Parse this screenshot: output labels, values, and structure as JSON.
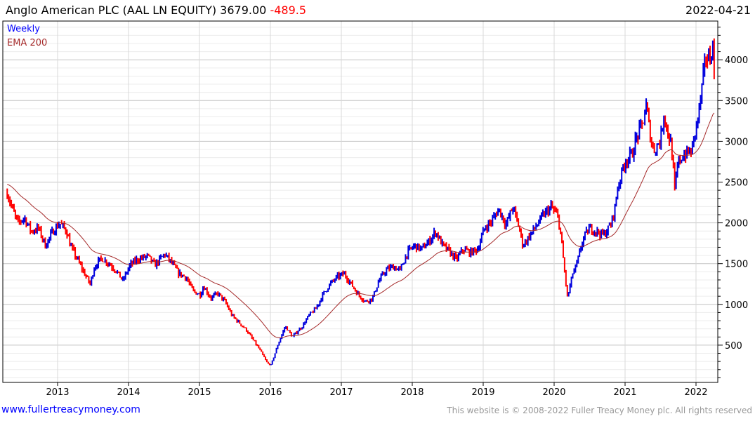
{
  "header": {
    "name": "Anglo American PLC (AAL LN EQUITY)",
    "last": "3679.00",
    "change": "-489.5",
    "date": "2022-04-21"
  },
  "footer": {
    "site": "www.fullertreacymoney.com",
    "copyright": "This website is © 2008-2022 Fuller Treacy Money plc. All rights reserved"
  },
  "colors": {
    "up": "#0000dd",
    "down": "#ff0000",
    "ema": "#a52a2a"
  },
  "chart_data": {
    "type": "line",
    "title": "Anglo American PLC (AAL LN EQUITY)",
    "legend": [
      {
        "label": "Weekly",
        "color": "#0000ff"
      },
      {
        "label": "EMA 200",
        "color": "#a52a2a"
      }
    ],
    "legend_position": "top-left",
    "xlim": [
      2012.25,
      2022.35
    ],
    "ylim": [
      0,
      4400
    ],
    "y_ticks": [
      500,
      1000,
      1500,
      2000,
      2500,
      3000,
      3500,
      4000
    ],
    "x_ticks": [
      2013,
      2014,
      2015,
      2016,
      2017,
      2018,
      2019,
      2020,
      2021,
      2022
    ],
    "x_tick_labels": [
      "2013",
      "2014",
      "2015",
      "2016",
      "2017",
      "2018",
      "2019",
      "2020",
      "2021",
      "2022"
    ],
    "y_tick_labels": [
      "500",
      "1000",
      "1500",
      "2000",
      "2500",
      "3000",
      "3500",
      "4000"
    ],
    "grid": true,
    "ema_start": 2480,
    "price_path": [
      [
        2012.29,
        2367
      ],
      [
        2012.37,
        2151
      ],
      [
        2012.44,
        1997
      ],
      [
        2012.53,
        2065
      ],
      [
        2012.63,
        1893
      ],
      [
        2012.73,
        1936
      ],
      [
        2012.83,
        1721
      ],
      [
        2012.93,
        1893
      ],
      [
        2013.03,
        1997
      ],
      [
        2013.13,
        1893
      ],
      [
        2013.18,
        1721
      ],
      [
        2013.28,
        1549
      ],
      [
        2013.38,
        1377
      ],
      [
        2013.46,
        1248
      ],
      [
        2013.52,
        1463
      ],
      [
        2013.62,
        1566
      ],
      [
        2013.72,
        1506
      ],
      [
        2013.82,
        1420
      ],
      [
        2013.92,
        1291
      ],
      [
        2014.02,
        1480
      ],
      [
        2014.12,
        1549
      ],
      [
        2014.27,
        1592
      ],
      [
        2014.37,
        1480
      ],
      [
        2014.51,
        1618
      ],
      [
        2014.61,
        1506
      ],
      [
        2014.71,
        1377
      ],
      [
        2014.81,
        1334
      ],
      [
        2014.91,
        1162
      ],
      [
        2015.01,
        1119
      ],
      [
        2015.06,
        1222
      ],
      [
        2015.16,
        1076
      ],
      [
        2015.26,
        1136
      ],
      [
        2015.36,
        1033
      ],
      [
        2015.46,
        861
      ],
      [
        2015.56,
        775
      ],
      [
        2015.66,
        688
      ],
      [
        2015.76,
        559
      ],
      [
        2015.86,
        430
      ],
      [
        2015.96,
        275
      ],
      [
        2016.01,
        258
      ],
      [
        2016.11,
        516
      ],
      [
        2016.21,
        732
      ],
      [
        2016.31,
        602
      ],
      [
        2016.45,
        732
      ],
      [
        2016.54,
        861
      ],
      [
        2016.64,
        947
      ],
      [
        2016.74,
        1119
      ],
      [
        2016.84,
        1248
      ],
      [
        2016.94,
        1334
      ],
      [
        2017.04,
        1377
      ],
      [
        2017.14,
        1248
      ],
      [
        2017.24,
        1119
      ],
      [
        2017.34,
        1033
      ],
      [
        2017.44,
        1076
      ],
      [
        2017.53,
        1291
      ],
      [
        2017.63,
        1420
      ],
      [
        2017.73,
        1463
      ],
      [
        2017.83,
        1420
      ],
      [
        2017.93,
        1635
      ],
      [
        2018.03,
        1721
      ],
      [
        2018.13,
        1678
      ],
      [
        2018.23,
        1764
      ],
      [
        2018.33,
        1893
      ],
      [
        2018.43,
        1721
      ],
      [
        2018.52,
        1652
      ],
      [
        2018.62,
        1549
      ],
      [
        2018.72,
        1678
      ],
      [
        2018.82,
        1635
      ],
      [
        2018.92,
        1678
      ],
      [
        2019.02,
        1936
      ],
      [
        2019.12,
        2022
      ],
      [
        2019.22,
        2169
      ],
      [
        2019.32,
        1979
      ],
      [
        2019.42,
        2195
      ],
      [
        2019.52,
        1893
      ],
      [
        2019.56,
        1721
      ],
      [
        2019.66,
        1850
      ],
      [
        2019.76,
        1979
      ],
      [
        2019.86,
        2108
      ],
      [
        2019.96,
        2195
      ],
      [
        2020.06,
        2065
      ],
      [
        2020.11,
        1721
      ],
      [
        2020.16,
        1291
      ],
      [
        2020.19,
        1076
      ],
      [
        2020.26,
        1377
      ],
      [
        2020.31,
        1463
      ],
      [
        2020.41,
        1807
      ],
      [
        2020.5,
        1936
      ],
      [
        2020.6,
        1893
      ],
      [
        2020.7,
        1850
      ],
      [
        2020.8,
        1979
      ],
      [
        2020.85,
        2151
      ],
      [
        2020.9,
        2453
      ],
      [
        2021.0,
        2754
      ],
      [
        2021.1,
        2840
      ],
      [
        2021.15,
        3012
      ],
      [
        2021.25,
        3227
      ],
      [
        2021.3,
        3442
      ],
      [
        2021.35,
        3098
      ],
      [
        2021.4,
        2883
      ],
      [
        2021.5,
        3012
      ],
      [
        2021.55,
        3356
      ],
      [
        2021.6,
        3098
      ],
      [
        2021.65,
        2969
      ],
      [
        2021.7,
        2410
      ],
      [
        2021.75,
        2754
      ],
      [
        2021.84,
        2840
      ],
      [
        2021.94,
        2883
      ],
      [
        2022.04,
        3356
      ],
      [
        2022.09,
        3701
      ],
      [
        2022.14,
        4045
      ],
      [
        2022.19,
        4002
      ],
      [
        2022.24,
        4174
      ],
      [
        2022.26,
        3679
      ]
    ]
  }
}
